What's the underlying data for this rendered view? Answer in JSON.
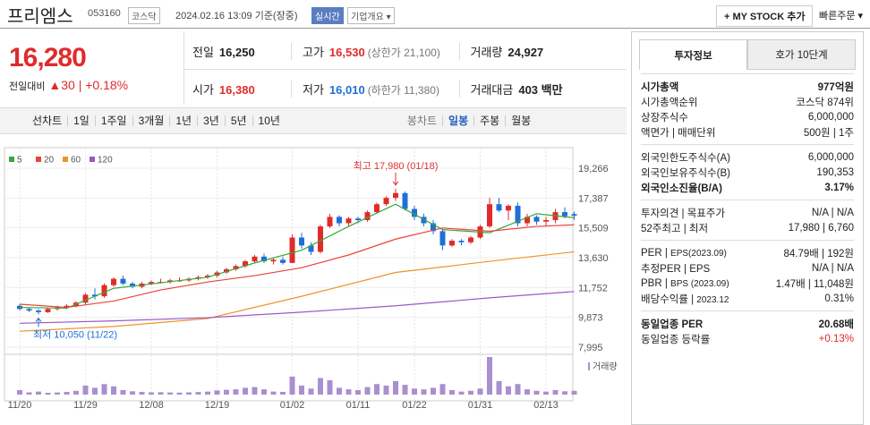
{
  "header": {
    "name": "프리엠스",
    "code": "053160",
    "market": "코스닥",
    "time": "2024.02.16 13:09 기준(장중)",
    "realtime": "실시간",
    "overview": "기업개요",
    "mystock": "+ MY STOCK 추가",
    "quick_order": "빠른주문"
  },
  "quote": {
    "price": "16,280",
    "change_label": "전일대비",
    "change": "30",
    "change_pct": "+0.18%",
    "rows": [
      [
        {
          "label": "전일",
          "value": "16,250"
        },
        {
          "label": "고가",
          "value": "16,530",
          "extra": "(상한가 21,100)"
        },
        {
          "label": "거래량",
          "value": "24,927"
        }
      ],
      [
        {
          "label": "시가",
          "value": "16,380"
        },
        {
          "label": "저가",
          "value": "16,010",
          "extra": "(하한가 11,380)"
        },
        {
          "label": "거래대금",
          "value": "403 백만"
        }
      ]
    ]
  },
  "toolbar": {
    "line": "선차트",
    "periods": [
      "1일",
      "1주일",
      "3개월",
      "1년",
      "3년",
      "5년",
      "10년"
    ],
    "candle": "봉차트",
    "candle_periods": [
      "일봉",
      "주봉",
      "월봉"
    ]
  },
  "chart_data": {
    "type": "candlestick",
    "up_color": "#e12b2b",
    "down_color": "#1f6fd8",
    "ylim": [
      7995,
      19266
    ],
    "yticks": [
      {
        "value": 19266,
        "label": "19,266"
      },
      {
        "value": 17387,
        "label": "17,387"
      },
      {
        "value": 15509,
        "label": "15,509"
      },
      {
        "value": 13630,
        "label": "13,630"
      },
      {
        "value": 11752,
        "label": "11,752"
      },
      {
        "value": 9873,
        "label": "9,873"
      },
      {
        "value": 7995,
        "label": "7,995"
      }
    ],
    "xlim": [
      -1,
      60
    ],
    "xticks": [
      {
        "value": 0,
        "label": "11/20"
      },
      {
        "value": 7,
        "label": "11/29"
      },
      {
        "value": 14,
        "label": "12/08"
      },
      {
        "value": 21,
        "label": "12/19"
      },
      {
        "value": 29,
        "label": "01/02"
      },
      {
        "value": 36,
        "label": "01/11"
      },
      {
        "value": 42,
        "label": "01/22"
      },
      {
        "value": 49,
        "label": "01/31"
      },
      {
        "value": 56,
        "label": "02/13"
      }
    ],
    "candles": [
      [
        10600,
        10700,
        10300,
        10400
      ],
      [
        10400,
        10500,
        10200,
        10300
      ],
      [
        10300,
        10400,
        10050,
        10200
      ],
      [
        10200,
        10500,
        10150,
        10400
      ],
      [
        10400,
        10600,
        10300,
        10500
      ],
      [
        10500,
        10700,
        10400,
        10600
      ],
      [
        10600,
        10900,
        10500,
        10800
      ],
      [
        10800,
        11400,
        10700,
        11300
      ],
      [
        11300,
        11700,
        11000,
        11200
      ],
      [
        11200,
        12000,
        11100,
        11900
      ],
      [
        11900,
        12400,
        11800,
        12300
      ],
      [
        12300,
        12500,
        11900,
        12000
      ],
      [
        12000,
        12100,
        11700,
        11800
      ],
      [
        11800,
        12100,
        11700,
        12000
      ],
      [
        12000,
        12200,
        11900,
        12100
      ],
      [
        12100,
        12300,
        12000,
        12100
      ],
      [
        12100,
        12300,
        12000,
        12200
      ],
      [
        12200,
        12400,
        12100,
        12200
      ],
      [
        12200,
        12400,
        12100,
        12300
      ],
      [
        12300,
        12500,
        12200,
        12400
      ],
      [
        12400,
        12600,
        12300,
        12500
      ],
      [
        12500,
        12800,
        12400,
        12700
      ],
      [
        12700,
        13000,
        12600,
        12900
      ],
      [
        12900,
        13200,
        12800,
        13100
      ],
      [
        13100,
        13500,
        13000,
        13400
      ],
      [
        13400,
        13800,
        13300,
        13700
      ],
      [
        13700,
        13900,
        13300,
        13400
      ],
      [
        13400,
        13600,
        13200,
        13500
      ],
      [
        13500,
        13700,
        13200,
        13300
      ],
      [
        13300,
        15100,
        13300,
        14900
      ],
      [
        14900,
        15200,
        14200,
        14400
      ],
      [
        14400,
        14600,
        13800,
        14000
      ],
      [
        14000,
        15700,
        13900,
        15600
      ],
      [
        15600,
        16400,
        15500,
        16200
      ],
      [
        16200,
        16300,
        15600,
        15800
      ],
      [
        15800,
        16200,
        15600,
        16100
      ],
      [
        16100,
        16200,
        15800,
        16000
      ],
      [
        16000,
        16600,
        15900,
        16500
      ],
      [
        16500,
        17100,
        16400,
        17000
      ],
      [
        17000,
        17500,
        16900,
        17400
      ],
      [
        17400,
        17980,
        17200,
        17700
      ],
      [
        17700,
        17800,
        16600,
        16700
      ],
      [
        16700,
        16900,
        16000,
        16200
      ],
      [
        16200,
        16400,
        15600,
        15800
      ],
      [
        15800,
        16000,
        15100,
        15300
      ],
      [
        15300,
        15400,
        14100,
        14400
      ],
      [
        14400,
        14800,
        14300,
        14700
      ],
      [
        14700,
        14800,
        14400,
        14600
      ],
      [
        14600,
        15000,
        14500,
        14900
      ],
      [
        14900,
        15700,
        14800,
        15600
      ],
      [
        15600,
        17400,
        15500,
        17000
      ],
      [
        17000,
        17400,
        16500,
        16600
      ],
      [
        16600,
        17000,
        16000,
        16900
      ],
      [
        16900,
        17100,
        15600,
        15800
      ],
      [
        15800,
        16400,
        15600,
        16200
      ],
      [
        16200,
        16300,
        15700,
        15900
      ],
      [
        15900,
        16200,
        15600,
        16000
      ],
      [
        16000,
        16700,
        15800,
        16500
      ],
      [
        16500,
        16800,
        16100,
        16250
      ],
      [
        16380,
        16530,
        16010,
        16280
      ]
    ],
    "series": [
      {
        "name": "5",
        "color": "#3aa63a",
        "x": [
          0,
          5,
          10,
          15,
          20,
          25,
          30,
          35,
          40,
          45,
          50,
          55,
          59
        ],
        "values": [
          10500,
          10450,
          11700,
          12050,
          12400,
          13300,
          14100,
          15600,
          17000,
          15400,
          15200,
          16400,
          16150
        ]
      },
      {
        "name": "20",
        "color": "#e8443a",
        "x": [
          0,
          5,
          10,
          15,
          20,
          25,
          30,
          35,
          40,
          45,
          50,
          55,
          59
        ],
        "values": [
          10700,
          10500,
          10900,
          11600,
          12100,
          12500,
          13000,
          13800,
          14800,
          15500,
          15300,
          15600,
          15700
        ]
      },
      {
        "name": "60",
        "color": "#f0922b",
        "x": [
          0,
          10,
          20,
          30,
          40,
          50,
          59
        ],
        "values": [
          9000,
          9300,
          9800,
          11200,
          12700,
          13400,
          14000
        ]
      },
      {
        "name": "120",
        "color": "#9b59c6",
        "x": [
          0,
          10,
          20,
          30,
          40,
          50,
          59
        ],
        "values": [
          9500,
          9650,
          9850,
          10200,
          10600,
          11100,
          11500
        ]
      }
    ],
    "volume": {
      "name": "거래량",
      "color": "#a98fd0",
      "values": [
        30000,
        15000,
        20000,
        12000,
        14000,
        18000,
        25000,
        60000,
        45000,
        70000,
        55000,
        30000,
        22000,
        18000,
        15000,
        16000,
        14000,
        13000,
        15000,
        17000,
        20000,
        28000,
        32000,
        35000,
        45000,
        50000,
        35000,
        20000,
        18000,
        120000,
        60000,
        40000,
        110000,
        95000,
        45000,
        35000,
        30000,
        50000,
        70000,
        60000,
        90000,
        65000,
        40000,
        35000,
        45000,
        70000,
        30000,
        20000,
        25000,
        40000,
        250000,
        90000,
        55000,
        70000,
        35000,
        25000,
        20000,
        30000,
        22000,
        24927
      ]
    },
    "annotations": {
      "high": "최고 17,980 (01/18)",
      "low": "최저 10,050 (11/22)"
    }
  },
  "invest_panel": {
    "tabs": [
      "투자정보",
      "호가 10단계"
    ],
    "groups": [
      [
        {
          "label": "시가총액",
          "value": "977억원"
        },
        {
          "label": "시가총액순위",
          "value": "코스닥 874위"
        },
        {
          "label": "상장주식수",
          "value": "6,000,000"
        },
        {
          "label": "액면가",
          "label2": "매매단위",
          "value": "500원",
          "value2": "1주"
        }
      ],
      [
        {
          "label": "외국인한도주식수(A)",
          "value": "6,000,000"
        },
        {
          "label": "외국인보유주식수(B)",
          "value": "190,353"
        },
        {
          "label": "외국인소진율(B/A)",
          "value": "3.17%"
        }
      ],
      [
        {
          "label": "투자의견",
          "label2": "목표주가",
          "value": "N/A",
          "value2": "N/A"
        },
        {
          "label": "52주최고",
          "label2": "최저",
          "value": "17,980",
          "value2": "6,760"
        }
      ],
      [
        {
          "label": "PER",
          "label2": "EPS(2023.09)",
          "value": "84.79배",
          "value2": "192원"
        },
        {
          "label": "추정PER",
          "label2": "EPS",
          "value": "N/A",
          "value2": "N/A"
        },
        {
          "label": "PBR",
          "label2": "BPS (2023.09)",
          "value": "1.47배",
          "value2": "11,048원"
        },
        {
          "label": "배당수익률",
          "label2": "2023.12",
          "value": "0.31%"
        }
      ],
      [
        {
          "label": "동일업종 PER",
          "value": "20.68배"
        },
        {
          "label": "동일업종 등락률",
          "value": "+0.13%"
        }
      ]
    ]
  }
}
